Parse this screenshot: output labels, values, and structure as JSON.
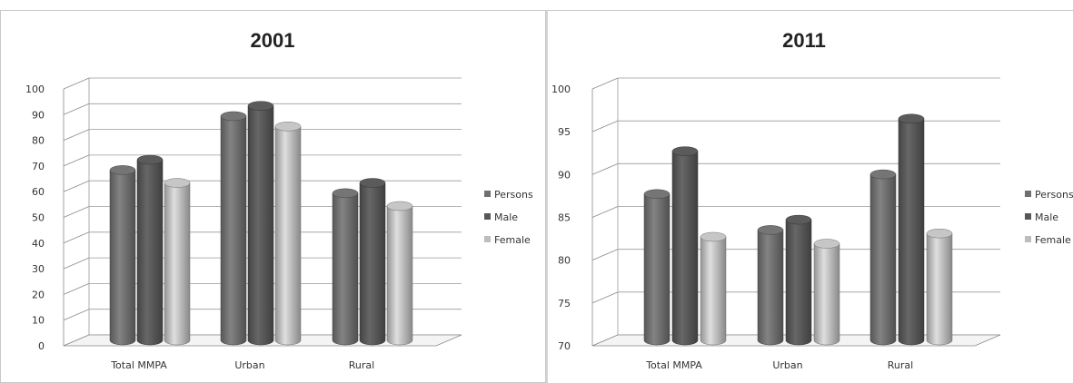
{
  "chart_data": [
    {
      "type": "bar",
      "title": "2001",
      "categories": [
        "Total MMPA",
        "Urban",
        "Rural"
      ],
      "ylim": [
        0,
        100
      ],
      "yticks": [
        0,
        10,
        20,
        30,
        40,
        50,
        60,
        70,
        80,
        90,
        100
      ],
      "grid": true,
      "legend_position": "right",
      "series": [
        {
          "name": "Persons",
          "values": [
            67,
            88,
            58
          ],
          "color": "#6f6f6f"
        },
        {
          "name": "Male",
          "values": [
            71,
            92,
            62
          ],
          "color": "#575757"
        },
        {
          "name": "Female",
          "values": [
            62,
            84,
            53
          ],
          "color": "#bdbdbd"
        }
      ]
    },
    {
      "type": "bar",
      "title": "2011",
      "categories": [
        "Total MMPA",
        "Urban",
        "Rural"
      ],
      "ylim": [
        70,
        100
      ],
      "yticks": [
        70,
        75,
        80,
        85,
        90,
        95,
        100
      ],
      "grid": true,
      "legend_position": "right",
      "series": [
        {
          "name": "Persons",
          "values": [
            87.3,
            83.1,
            89.6
          ],
          "color": "#6f6f6f"
        },
        {
          "name": "Male",
          "values": [
            92.3,
            84.3,
            96.1
          ],
          "color": "#575757"
        },
        {
          "name": "Female",
          "values": [
            82.3,
            81.5,
            82.7
          ],
          "color": "#bdbdbd"
        }
      ]
    }
  ]
}
